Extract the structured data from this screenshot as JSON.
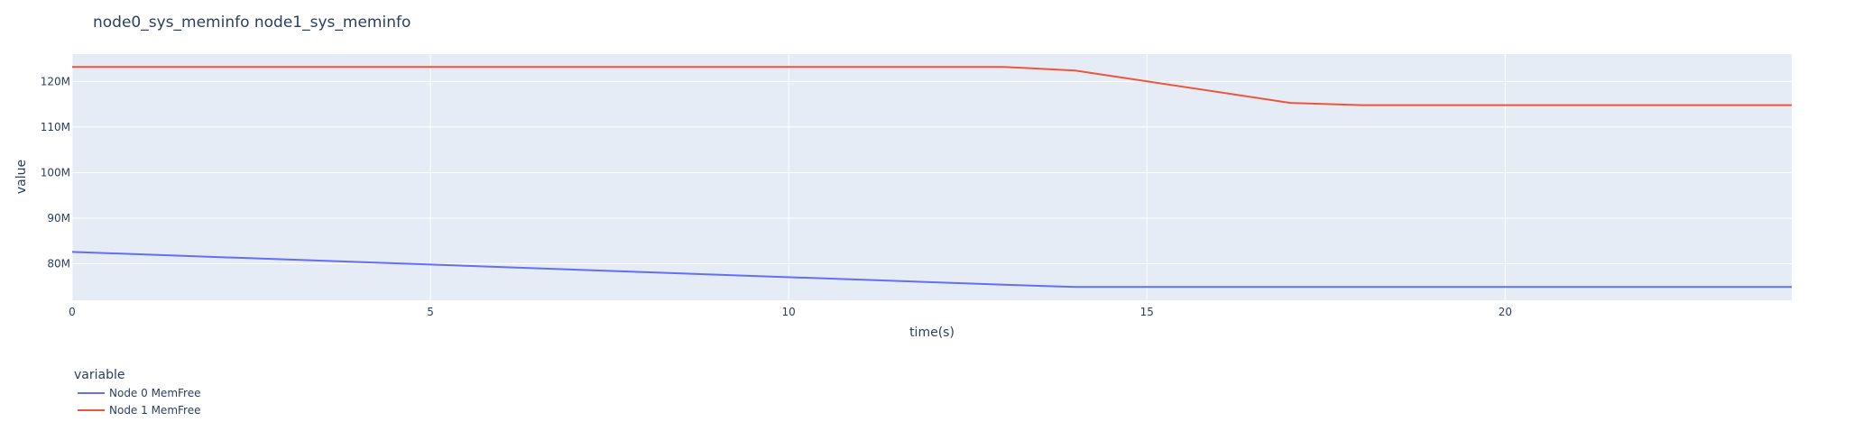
{
  "chart_data": {
    "type": "line",
    "title": "node0_sys_meminfo node1_sys_meminfo",
    "xlabel": "time(s)",
    "ylabel": "value",
    "xlim": [
      0,
      24
    ],
    "ylim": [
      72,
      126
    ],
    "x_ticks": [
      0,
      5,
      10,
      15,
      20
    ],
    "y_ticks": [
      80,
      90,
      100,
      110,
      120
    ],
    "y_tick_labels": [
      "80M",
      "90M",
      "100M",
      "110M",
      "120M"
    ],
    "grid": true,
    "legend": {
      "title": "variable",
      "placement": "bottom-left"
    },
    "series": [
      {
        "name": "Node 0 MemFree",
        "color": "#636efa",
        "x": [
          0,
          13,
          14,
          24
        ],
        "y": [
          82.6,
          75.4,
          74.9,
          74.9
        ]
      },
      {
        "name": "Node 1 MemFree",
        "color": "#ef553b",
        "x": [
          0,
          13,
          14,
          17,
          18,
          24
        ],
        "y": [
          123.2,
          123.2,
          122.4,
          115.3,
          114.8,
          114.8
        ]
      }
    ]
  }
}
